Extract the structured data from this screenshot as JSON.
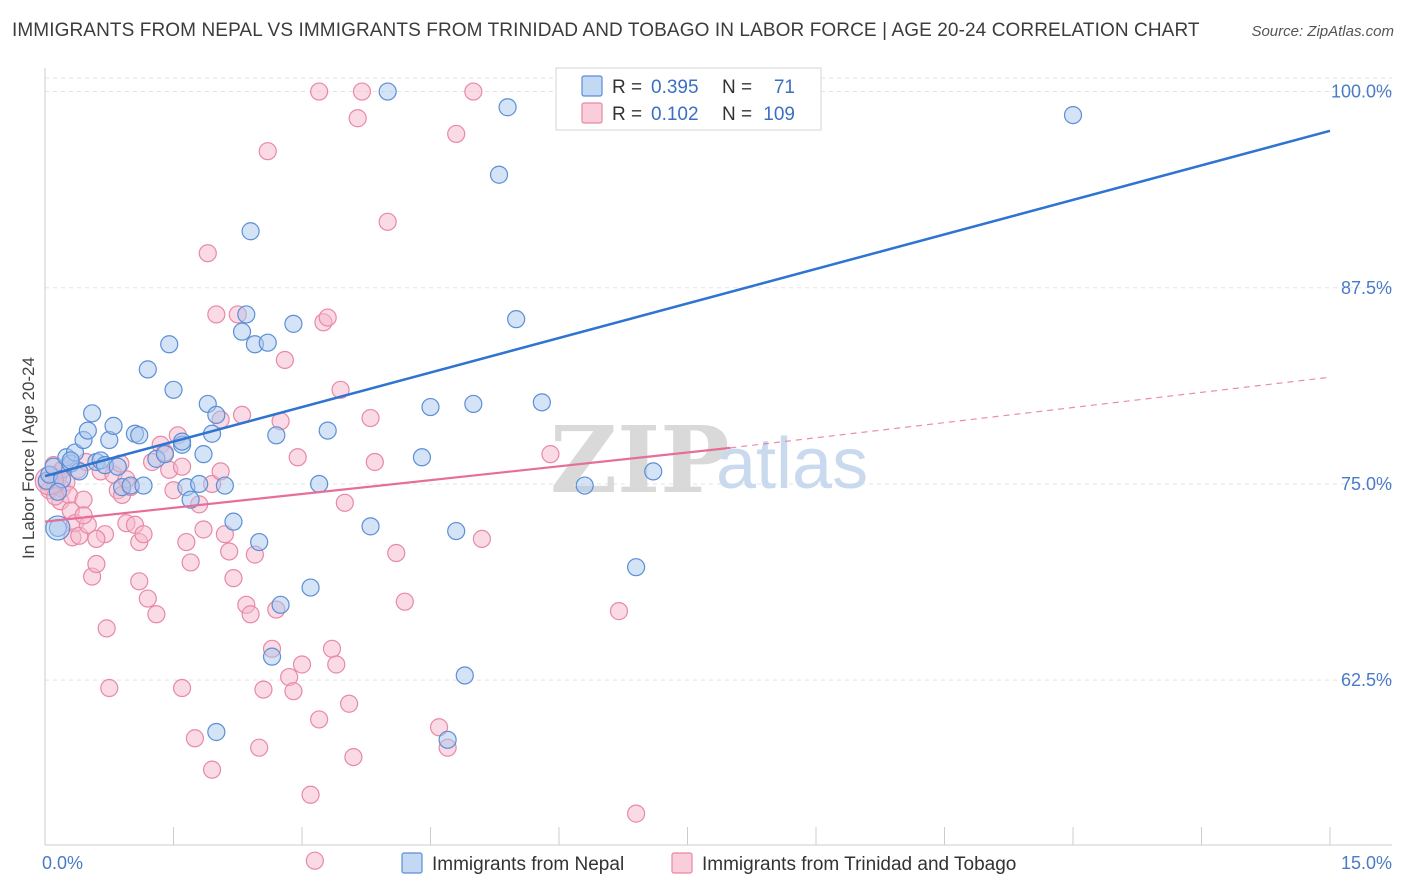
{
  "title": "IMMIGRANTS FROM NEPAL VS IMMIGRANTS FROM TRINIDAD AND TOBAGO IN LABOR FORCE | AGE 20-24 CORRELATION CHART",
  "source": "Source: ZipAtlas.com",
  "watermark": {
    "zip": "ZIP",
    "atlas": "atlas"
  },
  "colors": {
    "nepal_fill": "#a9c7ee",
    "nepal_stroke": "#5b8fd6",
    "nepal_line": "#2e74d0",
    "tt_fill": "#f6b8cb",
    "tt_stroke": "#e889a6",
    "tt_line": "#e56f98",
    "grid": "#e3e3e3",
    "axis_text": "#4a7bc8"
  },
  "legend_box": {
    "rows": [
      {
        "r_label": "R =",
        "r_value": "0.395",
        "n_label": "N =",
        "n_value": "71"
      },
      {
        "r_label": "R =",
        "r_value": "0.102",
        "n_label": "N =",
        "n_value": "109"
      }
    ]
  },
  "chart_data": {
    "type": "scatter",
    "title": "IMMIGRANTS FROM NEPAL VS IMMIGRANTS FROM TRINIDAD AND TOBAGO IN LABOR FORCE | AGE 20-24 CORRELATION CHART",
    "xlabel": "",
    "ylabel": "In Labor Force | Age 20-24",
    "xlim": [
      0,
      15
    ],
    "ylim": [
      52.0,
      101.5
    ],
    "x_tick_labels": [
      "0.0%",
      "15.0%"
    ],
    "y_ticks": [
      62.5,
      75.0,
      87.5,
      100.0
    ],
    "y_tick_labels": [
      "62.5%",
      "75.0%",
      "87.5%",
      "100.0%"
    ],
    "grid": true,
    "legend_position": "top-center",
    "series": [
      {
        "name": "Immigrants from Nepal",
        "R": 0.395,
        "N": 71,
        "trend": {
          "x0": 0.0,
          "y0": 75.5,
          "x1": 15.0,
          "y1": 97.5
        },
        "points": [
          [
            0.02,
            75.2
          ],
          [
            0.05,
            75.6
          ],
          [
            0.1,
            76.1
          ],
          [
            0.15,
            72.2
          ],
          [
            0.2,
            75.3
          ],
          [
            0.25,
            76.7
          ],
          [
            0.3,
            76.3
          ],
          [
            0.35,
            77.0
          ],
          [
            0.4,
            75.8
          ],
          [
            0.45,
            77.8
          ],
          [
            0.5,
            78.4
          ],
          [
            0.55,
            79.5
          ],
          [
            0.6,
            76.4
          ],
          [
            0.65,
            76.5
          ],
          [
            0.7,
            76.2
          ],
          [
            0.75,
            77.8
          ],
          [
            0.8,
            78.7
          ],
          [
            0.85,
            76.1
          ],
          [
            0.9,
            74.8
          ],
          [
            1.0,
            74.9
          ],
          [
            1.05,
            78.2
          ],
          [
            1.1,
            78.1
          ],
          [
            1.15,
            74.9
          ],
          [
            1.2,
            82.3
          ],
          [
            1.3,
            76.6
          ],
          [
            1.4,
            76.9
          ],
          [
            1.45,
            83.9
          ],
          [
            1.5,
            81.0
          ],
          [
            1.6,
            77.5
          ],
          [
            1.65,
            74.8
          ],
          [
            1.7,
            74.0
          ],
          [
            1.8,
            75.0
          ],
          [
            1.85,
            76.9
          ],
          [
            1.9,
            80.1
          ],
          [
            1.95,
            78.2
          ],
          [
            2.0,
            79.4
          ],
          [
            2.1,
            74.9
          ],
          [
            2.2,
            72.6
          ],
          [
            2.3,
            84.7
          ],
          [
            2.35,
            85.8
          ],
          [
            2.4,
            91.1
          ],
          [
            2.45,
            83.9
          ],
          [
            2.5,
            71.3
          ],
          [
            2.6,
            84.0
          ],
          [
            2.65,
            64.0
          ],
          [
            2.7,
            78.1
          ],
          [
            2.75,
            67.3
          ],
          [
            2.9,
            85.2
          ],
          [
            3.1,
            68.4
          ],
          [
            3.2,
            75.0
          ],
          [
            3.3,
            78.4
          ],
          [
            3.8,
            72.3
          ],
          [
            4.0,
            100.0
          ],
          [
            4.4,
            76.7
          ],
          [
            4.5,
            79.9
          ],
          [
            4.7,
            58.7
          ],
          [
            4.8,
            72.0
          ],
          [
            4.9,
            62.8
          ],
          [
            5.0,
            80.1
          ],
          [
            5.3,
            94.7
          ],
          [
            5.4,
            99.0
          ],
          [
            5.5,
            85.5
          ],
          [
            5.8,
            80.2
          ],
          [
            6.3,
            74.9
          ],
          [
            7.1,
            75.8
          ],
          [
            6.9,
            69.7
          ],
          [
            12.0,
            98.5
          ],
          [
            2.0,
            59.2
          ],
          [
            1.6,
            77.7
          ],
          [
            0.3,
            76.5
          ],
          [
            0.15,
            74.5
          ]
        ]
      },
      {
        "name": "Immigrants from Trinidad and Tobago",
        "R": 0.102,
        "N": 109,
        "trend": {
          "x0": 0.0,
          "y0": 72.6,
          "x1": 8.0,
          "y1": 77.3
        },
        "trend_dashed": {
          "x0": 8.0,
          "y0": 77.3,
          "x1": 15.0,
          "y1": 81.8
        },
        "points": [
          [
            0.02,
            75.1
          ],
          [
            0.05,
            74.6
          ],
          [
            0.08,
            75.5
          ],
          [
            0.1,
            76.2
          ],
          [
            0.12,
            74.9
          ],
          [
            0.15,
            75.3
          ],
          [
            0.18,
            73.9
          ],
          [
            0.2,
            74.7
          ],
          [
            0.22,
            76.0
          ],
          [
            0.25,
            75.1
          ],
          [
            0.28,
            74.3
          ],
          [
            0.3,
            73.3
          ],
          [
            0.32,
            71.6
          ],
          [
            0.35,
            72.5
          ],
          [
            0.38,
            75.9
          ],
          [
            0.4,
            71.7
          ],
          [
            0.45,
            74.0
          ],
          [
            0.48,
            76.4
          ],
          [
            0.5,
            72.4
          ],
          [
            0.55,
            69.1
          ],
          [
            0.6,
            69.9
          ],
          [
            0.65,
            75.8
          ],
          [
            0.7,
            71.8
          ],
          [
            0.72,
            65.8
          ],
          [
            0.75,
            62.0
          ],
          [
            0.8,
            75.6
          ],
          [
            0.85,
            74.6
          ],
          [
            0.88,
            76.3
          ],
          [
            0.9,
            74.3
          ],
          [
            0.95,
            72.5
          ],
          [
            1.0,
            74.8
          ],
          [
            1.05,
            72.4
          ],
          [
            1.1,
            71.3
          ],
          [
            1.15,
            71.8
          ],
          [
            1.2,
            67.7
          ],
          [
            1.25,
            76.4
          ],
          [
            1.3,
            66.7
          ],
          [
            1.35,
            77.5
          ],
          [
            1.4,
            77.0
          ],
          [
            1.45,
            75.9
          ],
          [
            1.5,
            74.6
          ],
          [
            1.55,
            78.1
          ],
          [
            1.6,
            62.0
          ],
          [
            1.65,
            71.3
          ],
          [
            1.7,
            70.0
          ],
          [
            1.75,
            58.8
          ],
          [
            1.8,
            73.7
          ],
          [
            1.85,
            72.1
          ],
          [
            1.9,
            89.7
          ],
          [
            1.95,
            75.0
          ],
          [
            2.0,
            85.8
          ],
          [
            2.05,
            79.1
          ],
          [
            2.1,
            71.8
          ],
          [
            2.15,
            70.7
          ],
          [
            2.2,
            69.0
          ],
          [
            2.25,
            85.8
          ],
          [
            2.3,
            79.4
          ],
          [
            2.35,
            67.3
          ],
          [
            2.4,
            66.7
          ],
          [
            2.45,
            70.5
          ],
          [
            2.5,
            58.2
          ],
          [
            2.55,
            61.9
          ],
          [
            2.6,
            96.2
          ],
          [
            2.65,
            64.5
          ],
          [
            2.7,
            67.0
          ],
          [
            2.75,
            79.0
          ],
          [
            2.8,
            82.9
          ],
          [
            2.85,
            62.7
          ],
          [
            2.9,
            61.8
          ],
          [
            2.95,
            76.7
          ],
          [
            3.0,
            63.5
          ],
          [
            3.1,
            55.2
          ],
          [
            3.15,
            51.0
          ],
          [
            3.2,
            60.0
          ],
          [
            3.25,
            85.3
          ],
          [
            3.3,
            85.6
          ],
          [
            3.35,
            64.5
          ],
          [
            3.4,
            63.5
          ],
          [
            3.45,
            81.0
          ],
          [
            3.5,
            73.8
          ],
          [
            3.55,
            61.0
          ],
          [
            3.6,
            57.6
          ],
          [
            3.65,
            98.3
          ],
          [
            3.7,
            100.0
          ],
          [
            3.8,
            79.2
          ],
          [
            3.85,
            76.4
          ],
          [
            4.0,
            91.7
          ],
          [
            4.1,
            70.6
          ],
          [
            4.2,
            67.5
          ],
          [
            4.6,
            59.5
          ],
          [
            4.7,
            58.2
          ],
          [
            4.8,
            97.3
          ],
          [
            5.0,
            100.0
          ],
          [
            5.1,
            71.5
          ],
          [
            5.9,
            76.9
          ],
          [
            6.2,
            100.0
          ],
          [
            6.5,
            100.0
          ],
          [
            6.7,
            66.9
          ],
          [
            6.9,
            54.0
          ],
          [
            3.2,
            100.0
          ],
          [
            1.95,
            56.8
          ],
          [
            0.95,
            75.3
          ],
          [
            1.1,
            68.8
          ],
          [
            0.6,
            71.5
          ],
          [
            0.45,
            73.0
          ],
          [
            0.2,
            75.9
          ],
          [
            0.12,
            74.2
          ],
          [
            1.6,
            76.1
          ],
          [
            2.05,
            75.8
          ]
        ]
      }
    ]
  },
  "bottom_legend": [
    {
      "label": "Immigrants from Nepal"
    },
    {
      "label": "Immigrants from Trinidad and Tobago"
    }
  ]
}
